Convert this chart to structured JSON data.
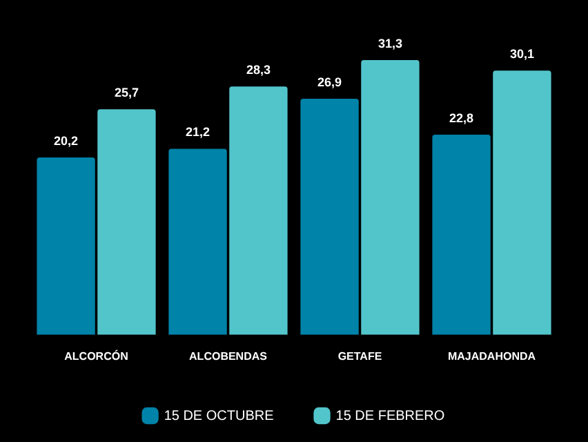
{
  "chart_data": {
    "type": "bar",
    "categories": [
      "ALCORCÓN",
      "ALCOBENDAS",
      "GETAFE",
      "MAJADAHONDA"
    ],
    "series": [
      {
        "name": "15 DE OCTUBRE",
        "color": "#0083a8",
        "values": [
          20.2,
          21.2,
          26.9,
          22.8
        ],
        "value_labels": [
          "20,2",
          "21,2",
          "26,9",
          "22,8"
        ]
      },
      {
        "name": "15 DE FEBRERO",
        "color": "#52c5cb",
        "values": [
          25.7,
          28.3,
          31.3,
          30.1
        ],
        "value_labels": [
          "25,7",
          "28,3",
          "31,3",
          "30,1"
        ]
      }
    ],
    "legend": "bottom",
    "grid": false
  }
}
